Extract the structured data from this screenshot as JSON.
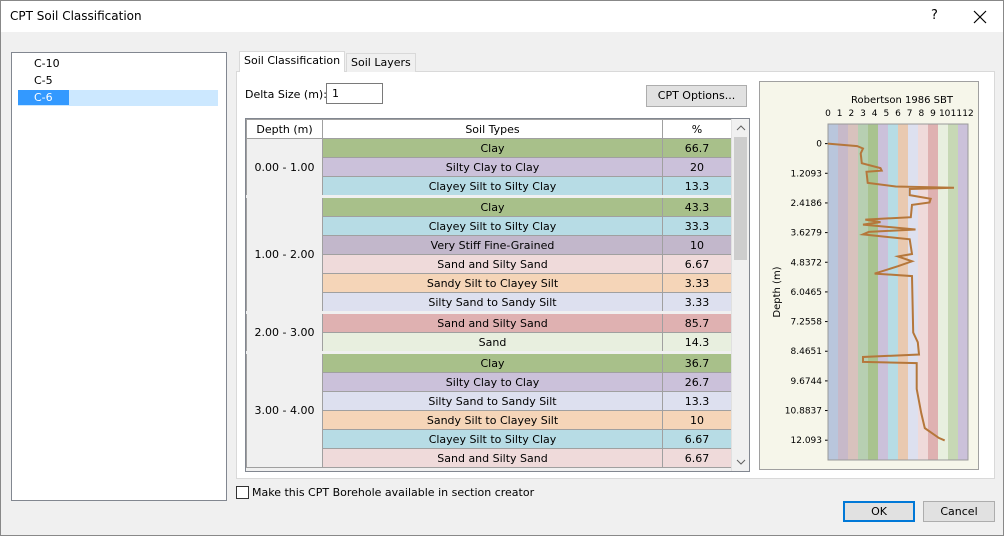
{
  "window": {
    "title": "CPT Soil Classification",
    "help": "?"
  },
  "boreholes": {
    "items": [
      "C-10",
      "C-5",
      "C-6"
    ],
    "selected": 2
  },
  "tabs": {
    "items": [
      "Soil Classification",
      "Soil Layers"
    ],
    "active": 0
  },
  "delta_size": {
    "label": "Delta Size (m):",
    "value": 1
  },
  "cpt_options_button": "CPT Options...",
  "table": {
    "headers": [
      "Depth (m)",
      "Soil Types",
      "%"
    ],
    "groups": [
      {
        "depth": "0.00 - 1.00",
        "rows": [
          {
            "soil": "Clay",
            "percent": 66.7,
            "color": "#a8c08a"
          },
          {
            "soil": "Silty Clay to Clay",
            "percent": 20,
            "color": "#cbc1da"
          },
          {
            "soil": "Clayey Silt to Silty Clay",
            "percent": 13.3,
            "color": "#b7dce5"
          }
        ]
      },
      {
        "depth": "1.00 - 2.00",
        "rows": [
          {
            "soil": "Clay",
            "percent": 43.3,
            "color": "#a8c08a"
          },
          {
            "soil": "Clayey Silt to Silty Clay",
            "percent": 33.3,
            "color": "#b7dce5"
          },
          {
            "soil": "Very Stiff Fine-Grained",
            "percent": 10,
            "color": "#c2b7cb"
          },
          {
            "soil": "Sand and Silty Sand",
            "percent": 6.67,
            "color": "#efdada"
          },
          {
            "soil": "Sandy Silt to Clayey Silt",
            "percent": 3.33,
            "color": "#f5d5b8"
          },
          {
            "soil": "Silty Sand to Sandy Silt",
            "percent": 3.33,
            "color": "#dde0ef"
          }
        ]
      },
      {
        "depth": "2.00 - 3.00",
        "rows": [
          {
            "soil": "Sand and Silty Sand",
            "percent": 85.7,
            "color": "#dfb1b1"
          },
          {
            "soil": "Sand",
            "percent": 14.3,
            "color": "#e8efdf"
          }
        ]
      },
      {
        "depth": "3.00 - 4.00",
        "rows": [
          {
            "soil": "Clay",
            "percent": 36.7,
            "color": "#a8c08a"
          },
          {
            "soil": "Silty Clay to Clay",
            "percent": 26.7,
            "color": "#cbc1da"
          },
          {
            "soil": "Silty Sand to Sandy Silt",
            "percent": 13.3,
            "color": "#dde0ef"
          },
          {
            "soil": "Sandy Silt to Clayey Silt",
            "percent": 10,
            "color": "#f5d5b8"
          },
          {
            "soil": "Clayey Silt to Silty Clay",
            "percent": 6.67,
            "color": "#b7dce5"
          },
          {
            "soil": "Sand and Silty Sand",
            "percent": 6.67,
            "color": "#efdada"
          }
        ]
      }
    ]
  },
  "chart": {
    "type": "line",
    "title": "Robertson 1986 SBT",
    "ylabel": "Depth (m)",
    "xlim": [
      0,
      12
    ],
    "xticks": [
      0,
      1,
      2,
      3,
      4,
      5,
      6,
      7,
      8,
      9,
      10,
      11,
      12
    ],
    "ylim": [
      -0.8,
      12.9
    ],
    "yticks": [
      0,
      1.2093,
      2.4186,
      3.6279,
      4.8372,
      6.0465,
      7.2558,
      8.4651,
      9.6744,
      10.8837,
      12.093
    ],
    "band_colors": [
      "#b9c6dc",
      "#c7b9c9",
      "#d8c2bd",
      "#b7cfb2",
      "#a9c38f",
      "#cbc1da",
      "#b7dce5",
      "#e9c9b0",
      "#dde0ef",
      "#efdada",
      "#dfb1b1",
      "#e8efdf",
      "#c7d8b5",
      "#cbc1da"
    ],
    "line_color": "#b5773b",
    "line": {
      "x": [
        0,
        2.5,
        3,
        2.8,
        2.9,
        4.5,
        4.6,
        3.3,
        3.4,
        5.8,
        10.8,
        7,
        7,
        8.8,
        8.7,
        7.2,
        7.1,
        3.2,
        4.5,
        3,
        7.5,
        3.5,
        3,
        7,
        7.2,
        6,
        7.2,
        6,
        4,
        7.2,
        7.3,
        7.7,
        7.8,
        3,
        3,
        7.6,
        7.6,
        8,
        8.3,
        9.5,
        10
      ],
      "depth": [
        0,
        0.1,
        0.2,
        0.4,
        0.8,
        1,
        1.1,
        1.15,
        1.6,
        1.75,
        1.8,
        1.85,
        2.1,
        2.25,
        2.4,
        2.5,
        3,
        3.1,
        3.2,
        3.3,
        3.5,
        3.6,
        3.7,
        3.9,
        4.5,
        4.6,
        4.8,
        5,
        5.3,
        5.4,
        7.7,
        8.1,
        8.6,
        8.7,
        8.9,
        8.95,
        10,
        11,
        11.6,
        12,
        12.1
      ]
    }
  },
  "checkbox": {
    "label": "Make this CPT Borehole available in section creator",
    "checked": false
  },
  "buttons": {
    "ok": "OK",
    "cancel": "Cancel"
  }
}
